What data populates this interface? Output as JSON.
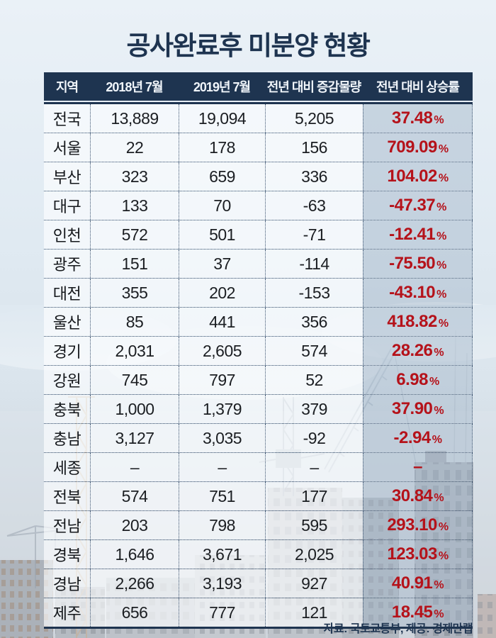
{
  "title": "공사완료후 미분양 현황",
  "source_note": "자료: 국토교통부, 제공: 경제만랩",
  "colors": {
    "navy": "#1e3450",
    "red": "#b5121a",
    "rate_column_shade": "#c9d4df",
    "page_background": "#e0eaf2"
  },
  "table": {
    "columns": [
      "지역",
      "2018년 7월",
      "2019년 7월",
      "전년 대비 증감물량",
      "전년 대비 상승률"
    ],
    "rows": [
      {
        "region": "전국",
        "y2018": "13,889",
        "y2019": "19,094",
        "change": "5,205",
        "rate": "37.48",
        "unit": "%"
      },
      {
        "region": "서울",
        "y2018": "22",
        "y2019": "178",
        "change": "156",
        "rate": "709.09",
        "unit": "%"
      },
      {
        "region": "부산",
        "y2018": "323",
        "y2019": "659",
        "change": "336",
        "rate": "104.02",
        "unit": "%"
      },
      {
        "region": "대구",
        "y2018": "133",
        "y2019": "70",
        "change": "-63",
        "rate": "-47.37",
        "unit": "%"
      },
      {
        "region": "인천",
        "y2018": "572",
        "y2019": "501",
        "change": "-71",
        "rate": "-12.41",
        "unit": "%"
      },
      {
        "region": "광주",
        "y2018": "151",
        "y2019": "37",
        "change": "-114",
        "rate": "-75.50",
        "unit": "%"
      },
      {
        "region": "대전",
        "y2018": "355",
        "y2019": "202",
        "change": "-153",
        "rate": "-43.10",
        "unit": "%"
      },
      {
        "region": "울산",
        "y2018": "85",
        "y2019": "441",
        "change": "356",
        "rate": "418.82",
        "unit": "%"
      },
      {
        "region": "경기",
        "y2018": "2,031",
        "y2019": "2,605",
        "change": "574",
        "rate": "28.26",
        "unit": "%"
      },
      {
        "region": "강원",
        "y2018": "745",
        "y2019": "797",
        "change": "52",
        "rate": "6.98",
        "unit": "%"
      },
      {
        "region": "충북",
        "y2018": "1,000",
        "y2019": "1,379",
        "change": "379",
        "rate": "37.90",
        "unit": "%"
      },
      {
        "region": "충남",
        "y2018": "3,127",
        "y2019": "3,035",
        "change": "-92",
        "rate": "-2.94",
        "unit": "%"
      },
      {
        "region": "세종",
        "y2018": "–",
        "y2019": "–",
        "change": "–",
        "rate": "–",
        "unit": ""
      },
      {
        "region": "전북",
        "y2018": "574",
        "y2019": "751",
        "change": "177",
        "rate": "30.84",
        "unit": "%"
      },
      {
        "region": "전남",
        "y2018": "203",
        "y2019": "798",
        "change": "595",
        "rate": "293.10",
        "unit": "%"
      },
      {
        "region": "경북",
        "y2018": "1,646",
        "y2019": "3,671",
        "change": "2,025",
        "rate": "123.03",
        "unit": "%"
      },
      {
        "region": "경남",
        "y2018": "2,266",
        "y2019": "3,193",
        "change": "927",
        "rate": "40.91",
        "unit": "%"
      },
      {
        "region": "제주",
        "y2018": "656",
        "y2019": "777",
        "change": "121",
        "rate": "18.45",
        "unit": "%"
      }
    ]
  },
  "chart_data": {
    "type": "table",
    "title": "공사완료후 미분양 현황",
    "columns": [
      "지역",
      "2018년 7월",
      "2019년 7월",
      "전년 대비 증감물량",
      "전년 대비 상승률(%)"
    ],
    "rows": [
      [
        "전국",
        13889,
        19094,
        5205,
        37.48
      ],
      [
        "서울",
        22,
        178,
        156,
        709.09
      ],
      [
        "부산",
        323,
        659,
        336,
        104.02
      ],
      [
        "대구",
        133,
        70,
        -63,
        -47.37
      ],
      [
        "인천",
        572,
        501,
        -71,
        -12.41
      ],
      [
        "광주",
        151,
        37,
        -114,
        -75.5
      ],
      [
        "대전",
        355,
        202,
        -153,
        -43.1
      ],
      [
        "울산",
        85,
        441,
        356,
        418.82
      ],
      [
        "경기",
        2031,
        2605,
        574,
        28.26
      ],
      [
        "강원",
        745,
        797,
        52,
        6.98
      ],
      [
        "충북",
        1000,
        1379,
        379,
        37.9
      ],
      [
        "충남",
        3127,
        3035,
        -92,
        -2.94
      ],
      [
        "세종",
        null,
        null,
        null,
        null
      ],
      [
        "전북",
        574,
        751,
        177,
        30.84
      ],
      [
        "전남",
        203,
        798,
        595,
        293.1
      ],
      [
        "경북",
        1646,
        3671,
        2025,
        123.03
      ],
      [
        "경남",
        2266,
        3193,
        927,
        40.91
      ],
      [
        "제주",
        656,
        777,
        121,
        18.45
      ]
    ],
    "source": "자료: 국토교통부, 제공: 경제만랩"
  }
}
